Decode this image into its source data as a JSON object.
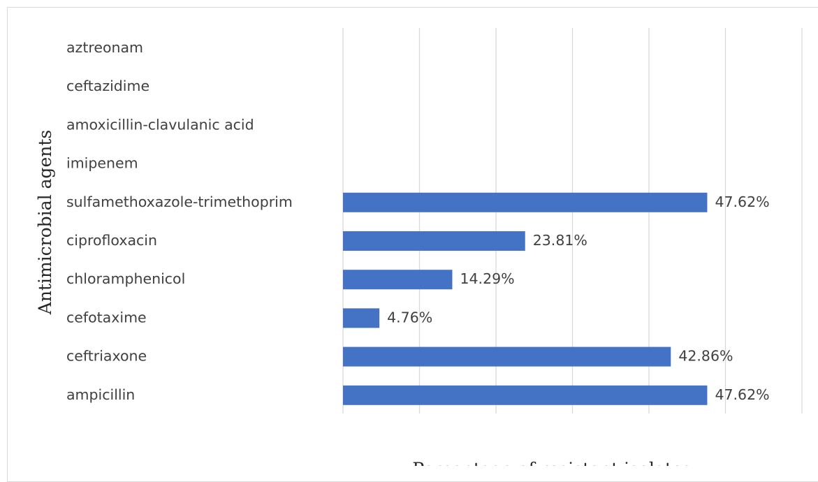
{
  "chart_data": {
    "type": "bar",
    "orientation": "horizontal",
    "categories": [
      "aztreonam",
      "ceftazidime",
      "amoxicillin-clavulanic acid",
      "imipenem",
      "sulfamethoxazole-trimethoprim",
      "ciprofloxacin",
      "chloramphenicol",
      "cefotaxime",
      "ceftriaxone",
      "ampicillin"
    ],
    "values": [
      null,
      null,
      null,
      null,
      47.62,
      23.81,
      14.29,
      4.76,
      42.86,
      47.62
    ],
    "value_labels": [
      null,
      null,
      null,
      null,
      "47.62%",
      "23.81%",
      "14.29%",
      "4.76%",
      "42.86%",
      "47.62%"
    ],
    "ylabel": "Antimicrobial agents",
    "xlabel": "Percentage of resistant isolates",
    "xlim": [
      0,
      60
    ],
    "grid": true,
    "bar_color": "#4472c4"
  }
}
